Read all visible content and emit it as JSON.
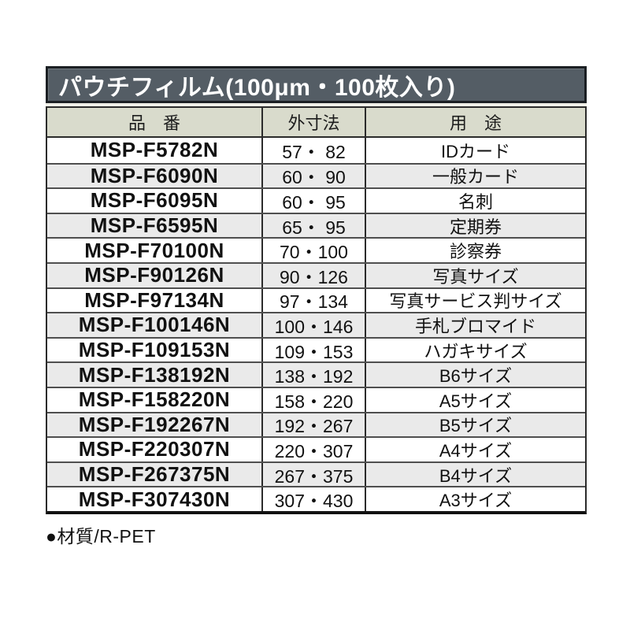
{
  "table": {
    "title": "パウチフィルム(100μm・100枚入り)",
    "columns": [
      "品　番",
      "外寸法",
      "用　途"
    ],
    "rows": [
      {
        "code": "MSP-F5782N",
        "size": "57・ 82",
        "use": "IDカード"
      },
      {
        "code": "MSP-F6090N",
        "size": "60・ 90",
        "use": "一般カード"
      },
      {
        "code": "MSP-F6095N",
        "size": "60・ 95",
        "use": "名刺"
      },
      {
        "code": "MSP-F6595N",
        "size": "65・ 95",
        "use": "定期券"
      },
      {
        "code": "MSP-F70100N",
        "size": "70・100",
        "use": "診察券"
      },
      {
        "code": "MSP-F90126N",
        "size": "90・126",
        "use": "写真サイズ"
      },
      {
        "code": "MSP-F97134N",
        "size": "97・134",
        "use": "写真サービス判サイズ"
      },
      {
        "code": "MSP-F100146N",
        "size": "100・146",
        "use": "手札ブロマイド"
      },
      {
        "code": "MSP-F109153N",
        "size": "109・153",
        "use": "ハガキサイズ"
      },
      {
        "code": "MSP-F138192N",
        "size": "138・192",
        "use": "B6サイズ"
      },
      {
        "code": "MSP-F158220N",
        "size": "158・220",
        "use": "A5サイズ"
      },
      {
        "code": "MSP-F192267N",
        "size": "192・267",
        "use": "B5サイズ"
      },
      {
        "code": "MSP-F220307N",
        "size": "220・307",
        "use": "A4サイズ"
      },
      {
        "code": "MSP-F267375N",
        "size": "267・375",
        "use": "B4サイズ"
      },
      {
        "code": "MSP-F307430N",
        "size": "307・430",
        "use": "A3サイズ"
      }
    ],
    "footer_note": "●材質/R-PET"
  },
  "colors": {
    "title_bg": "#545d65",
    "title_text": "#ffffff",
    "header_bg": "#d9dbcc",
    "row_alt_bg": "#eaeaea",
    "grid_border": "#2b2b2b"
  }
}
